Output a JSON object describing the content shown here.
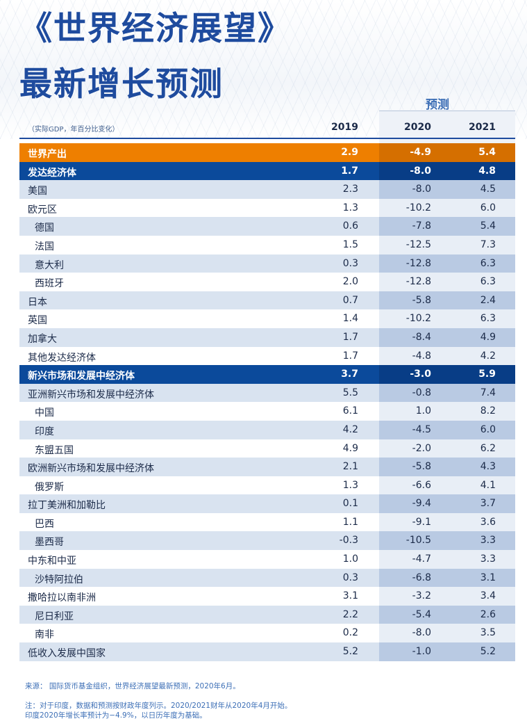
{
  "title": {
    "line1": "《世界经济展望》",
    "line2": "最新增长预测"
  },
  "forecast_label": "预测",
  "header": {
    "note": "（实际GDP，年百分比变化）",
    "years": [
      "2019",
      "2020",
      "2021"
    ]
  },
  "rows": [
    {
      "name": "世界产出",
      "v": [
        "2.9",
        "-4.9",
        "5.4"
      ]
    },
    {
      "name": "发达经济体",
      "v": [
        "1.7",
        "-8.0",
        "4.8"
      ]
    },
    {
      "name": "美国",
      "v": [
        "2.3",
        "-8.0",
        "4.5"
      ]
    },
    {
      "name": "欧元区",
      "v": [
        "1.3",
        "-10.2",
        "6.0"
      ]
    },
    {
      "name": "德国",
      "v": [
        "0.6",
        "-7.8",
        "5.4"
      ]
    },
    {
      "name": "法国",
      "v": [
        "1.5",
        "-12.5",
        "7.3"
      ]
    },
    {
      "name": "意大利",
      "v": [
        "0.3",
        "-12.8",
        "6.3"
      ]
    },
    {
      "name": "西班牙",
      "v": [
        "2.0",
        "-12.8",
        "6.3"
      ]
    },
    {
      "name": "日本",
      "v": [
        "0.7",
        "-5.8",
        "2.4"
      ]
    },
    {
      "name": "英国",
      "v": [
        "1.4",
        "-10.2",
        "6.3"
      ]
    },
    {
      "name": "加拿大",
      "v": [
        "1.7",
        "-8.4",
        "4.9"
      ]
    },
    {
      "name": "其他发达经济体",
      "v": [
        "1.7",
        "-4.8",
        "4.2"
      ]
    },
    {
      "name": "新兴市场和发展中经济体",
      "v": [
        "3.7",
        "-3.0",
        "5.9"
      ]
    },
    {
      "name": "亚洲新兴市场和发展中经济体",
      "v": [
        "5.5",
        "-0.8",
        "7.4"
      ]
    },
    {
      "name": "中国",
      "v": [
        "6.1",
        "1.0",
        "8.2"
      ]
    },
    {
      "name": "印度",
      "v": [
        "4.2",
        "-4.5",
        "6.0"
      ]
    },
    {
      "name": "东盟五国",
      "v": [
        "4.9",
        "-2.0",
        "6.2"
      ]
    },
    {
      "name": "欧洲新兴市场和发展中经济体",
      "v": [
        "2.1",
        "-5.8",
        "4.3"
      ]
    },
    {
      "name": "俄罗斯",
      "v": [
        "1.3",
        "-6.6",
        "4.1"
      ]
    },
    {
      "name": "拉丁美洲和加勒比",
      "v": [
        "0.1",
        "-9.4",
        "3.7"
      ]
    },
    {
      "name": "巴西",
      "v": [
        "1.1",
        "-9.1",
        "3.6"
      ]
    },
    {
      "name": "墨西哥",
      "v": [
        "-0.3",
        "-10.5",
        "3.3"
      ]
    },
    {
      "name": "中东和中亚",
      "v": [
        "1.0",
        "-4.7",
        "3.3"
      ]
    },
    {
      "name": "沙特阿拉伯",
      "v": [
        "0.3",
        "-6.8",
        "3.1"
      ]
    },
    {
      "name": "撒哈拉以南非洲",
      "v": [
        "3.1",
        "-3.2",
        "3.4"
      ]
    },
    {
      "name": "尼日利亚",
      "v": [
        "2.2",
        "-5.4",
        "2.6"
      ]
    },
    {
      "name": "南非",
      "v": [
        "0.2",
        "-8.0",
        "3.5"
      ]
    },
    {
      "name": "低收入发展中国家",
      "v": [
        "5.2",
        "-1.0",
        "5.2"
      ]
    }
  ],
  "footer": {
    "source": "来源：  国际货币基金组织，世界经济展望最新预测，2020年6月。",
    "note1": "注：对于印度，数据和预测按财政年度列示。2020/2021财年从2020年4月开始。",
    "note2": "印度2020年增长率预计为−4.9%，以日历年度为基础。"
  },
  "colors": {
    "world": "#ee7f00",
    "group": "#0b4a9b",
    "title": "#1e4b9e"
  }
}
